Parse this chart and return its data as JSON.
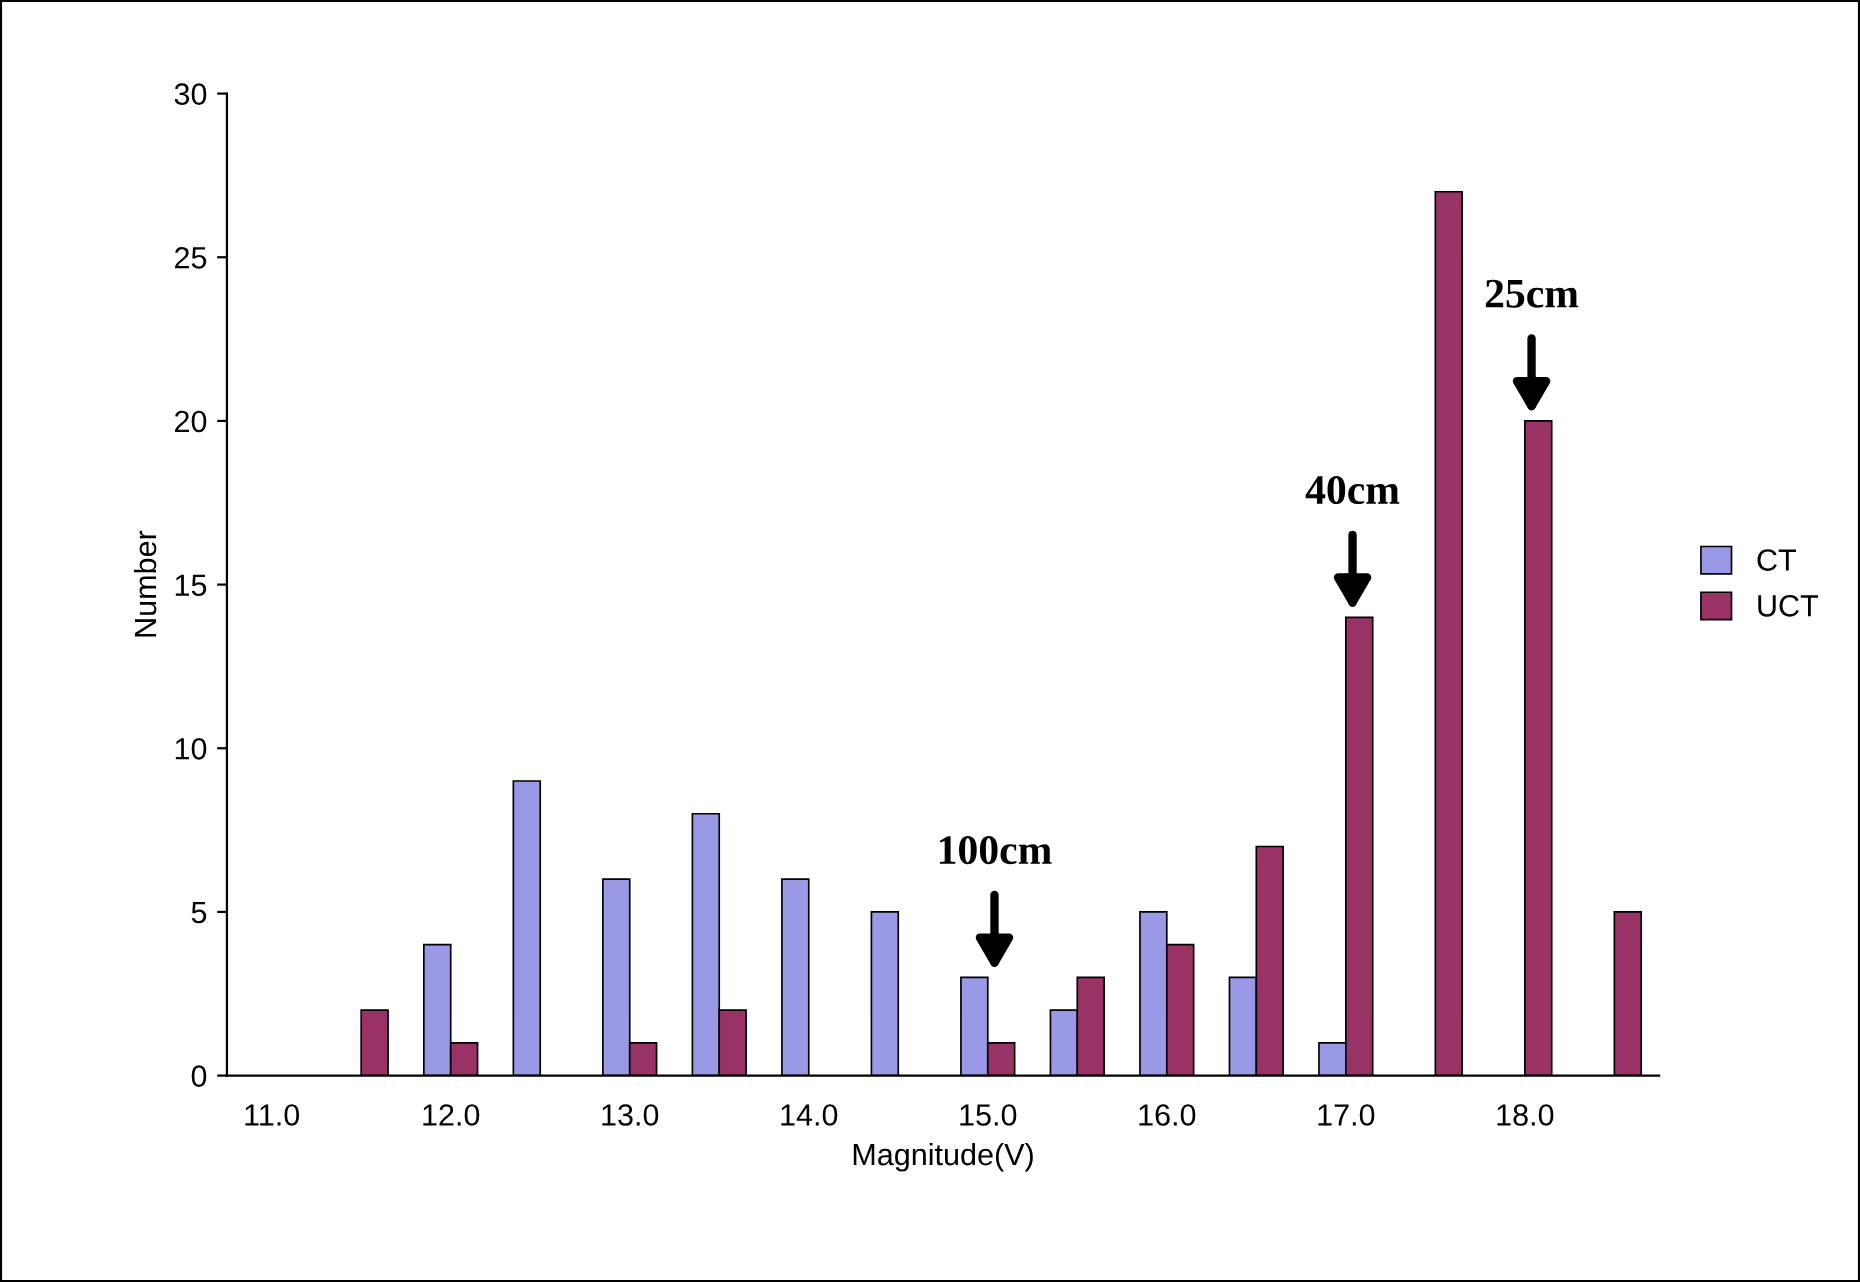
{
  "chart_data": {
    "type": "bar",
    "xlabel": "Magnitude(V)",
    "ylabel": "Number",
    "categories": [
      "11.0",
      null,
      "12.0",
      null,
      "13.0",
      null,
      "14.0",
      null,
      "15.0",
      null,
      "16.0",
      null,
      "17.0",
      null,
      "18.0",
      null
    ],
    "series": [
      {
        "name": "CT",
        "color": "#9999e6",
        "values": [
          0,
          0,
          4,
          9,
          6,
          8,
          6,
          5,
          3,
          2,
          5,
          3,
          1,
          0,
          0,
          0
        ]
      },
      {
        "name": "UCT",
        "color": "#993366",
        "values": [
          0,
          2,
          1,
          0,
          1,
          2,
          0,
          0,
          1,
          3,
          4,
          7,
          14,
          27,
          20,
          5
        ]
      }
    ],
    "ylim": [
      0,
      30
    ],
    "yticks": [
      0,
      5,
      10,
      15,
      20,
      25,
      30
    ],
    "grid": false,
    "legend": "right",
    "annotations": [
      {
        "text": "100cm",
        "x": "15.0",
        "y": 3
      },
      {
        "text": "40cm",
        "x": "17.0",
        "y": 14
      },
      {
        "text": "25cm",
        "x": "18.0",
        "y": 20
      }
    ]
  }
}
